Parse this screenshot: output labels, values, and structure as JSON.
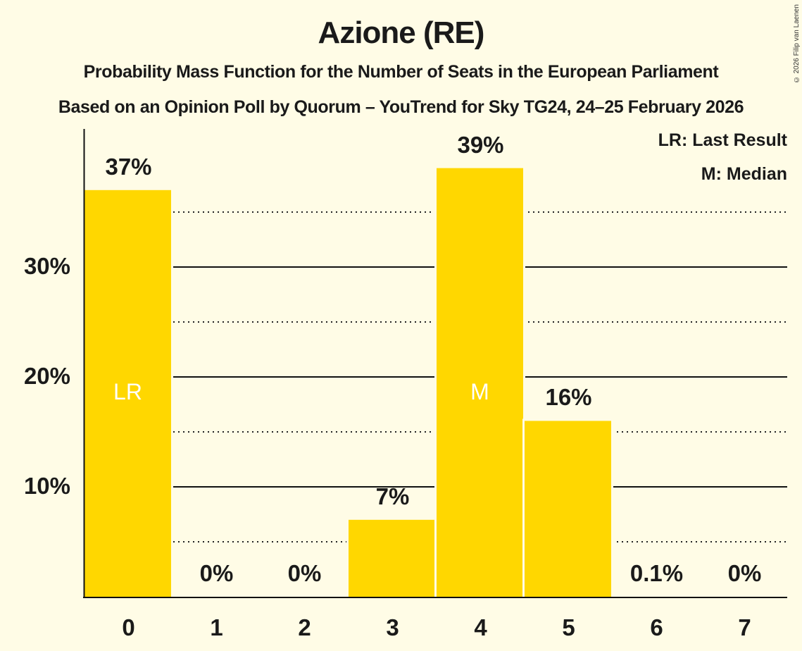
{
  "title": "Azione (RE)",
  "subtitle_1": "Probability Mass Function for the Number of Seats in the European Parliament",
  "subtitle_2": "Based on an Opinion Poll by Quorum – YouTrend for Sky TG24, 24–25 February 2026",
  "copyright": "© 2026 Filip van Laenen",
  "legend": {
    "lr": "LR: Last Result",
    "m": "M: Median"
  },
  "y_ticks": [
    "10%",
    "20%",
    "30%"
  ],
  "bar_color": "#FFD700",
  "chart_data": {
    "type": "bar",
    "title": "Azione (RE)",
    "subtitle": "Probability Mass Function for the Number of Seats in the European Parliament",
    "categories": [
      "0",
      "1",
      "2",
      "3",
      "4",
      "5",
      "6",
      "7"
    ],
    "values": [
      37,
      0,
      0,
      7,
      39,
      16,
      0.1,
      0
    ],
    "value_labels": [
      "37%",
      "0%",
      "0%",
      "7%",
      "39%",
      "16%",
      "0.1%",
      "0%"
    ],
    "xlabel": "",
    "ylabel": "",
    "ylim": [
      0,
      42
    ],
    "yticks": [
      10,
      20,
      30
    ],
    "grid": {
      "major": [
        10,
        20,
        30
      ],
      "minor_dotted": [
        5,
        15,
        25,
        35
      ]
    },
    "annotations": [
      {
        "category": "0",
        "label": "LR",
        "meaning": "Last Result"
      },
      {
        "category": "4",
        "label": "M",
        "meaning": "Median"
      }
    ],
    "legend": [
      "LR: Last Result",
      "M: Median"
    ],
    "legend_position": "top-right"
  }
}
